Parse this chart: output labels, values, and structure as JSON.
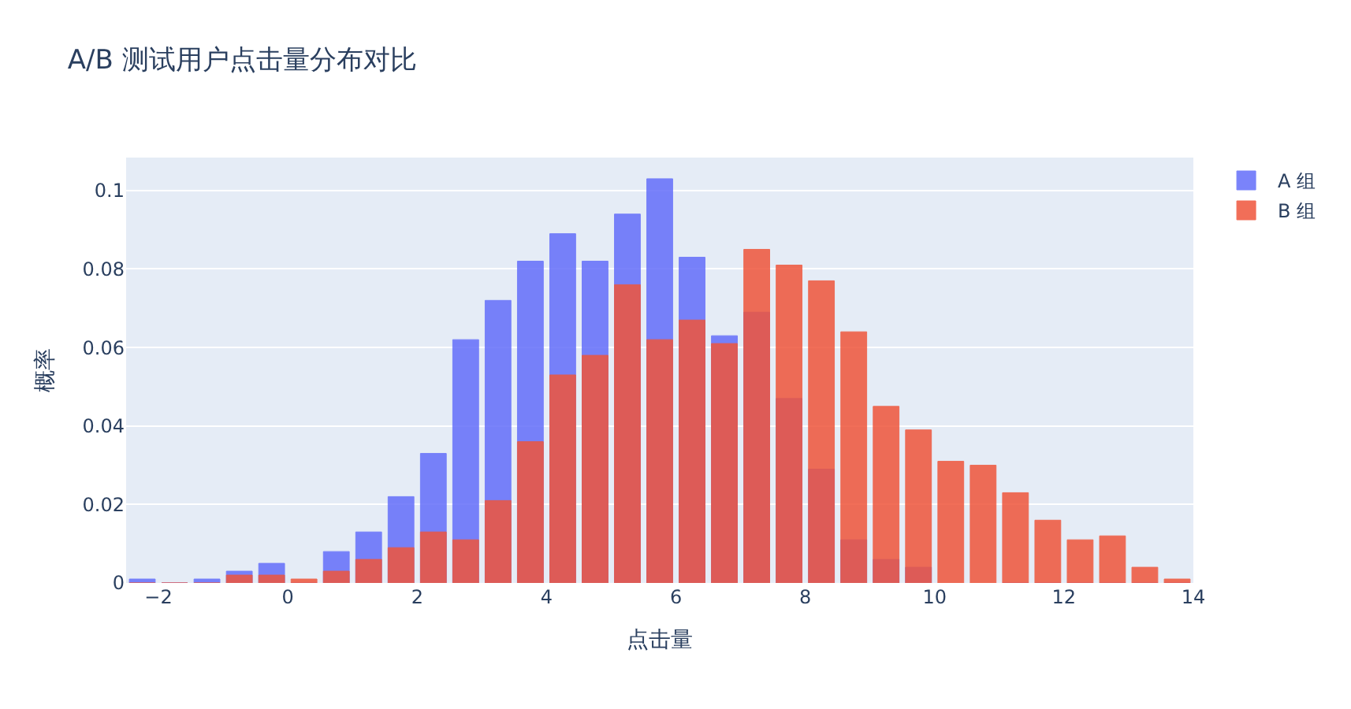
{
  "chart_data": {
    "type": "histogram",
    "title": "A/B 测试用户点击量分布对比",
    "xlabel": "点击量",
    "ylabel": "概率",
    "bins": [
      -2.5,
      -2,
      -1.5,
      -1,
      -0.5,
      0,
      0.5,
      1,
      1.5,
      2,
      2.5,
      3,
      3.5,
      4,
      4.5,
      5,
      5.5,
      6,
      6.5,
      7,
      7.5,
      8,
      8.5,
      9,
      9.5,
      10,
      10.5,
      11,
      11.5,
      12,
      12.5,
      13,
      13.5,
      14
    ],
    "series": [
      {
        "name": "A 组",
        "color": "#636efa",
        "values": [
          0.001,
          0,
          0.001,
          0.003,
          0.005,
          0,
          0.008,
          0.013,
          0.022,
          0.033,
          0.062,
          0.072,
          0.082,
          0.089,
          0.082,
          0.094,
          0.103,
          0.083,
          0.063,
          0.069,
          0.047,
          0.029,
          0.011,
          0.006,
          0.004,
          null,
          null,
          0,
          0,
          0,
          0,
          0,
          0
        ]
      },
      {
        "name": "B 组",
        "color": "#ef553b",
        "values": [
          0,
          0,
          0,
          0.002,
          0.002,
          0.001,
          0.003,
          0.006,
          0.009,
          0.013,
          0.011,
          0.021,
          0.036,
          0.053,
          0.058,
          0.076,
          0.062,
          0.067,
          0.061,
          0.085,
          0.081,
          0.077,
          0.064,
          0.045,
          0.039,
          0.031,
          0.03,
          0.023,
          0.016,
          0.011,
          0.012,
          0.004,
          0.001
        ]
      }
    ],
    "xlim": [
      -2.5,
      14
    ],
    "xticks": [
      {
        "value": -2,
        "label": "−2"
      },
      0,
      2,
      4,
      6,
      8,
      10,
      12,
      14
    ],
    "ylim": [
      0,
      0.1084
    ],
    "yticks": [
      0,
      0.02,
      0.04,
      0.06,
      0.08,
      0.1
    ],
    "grid": "y",
    "legend": "top right"
  }
}
